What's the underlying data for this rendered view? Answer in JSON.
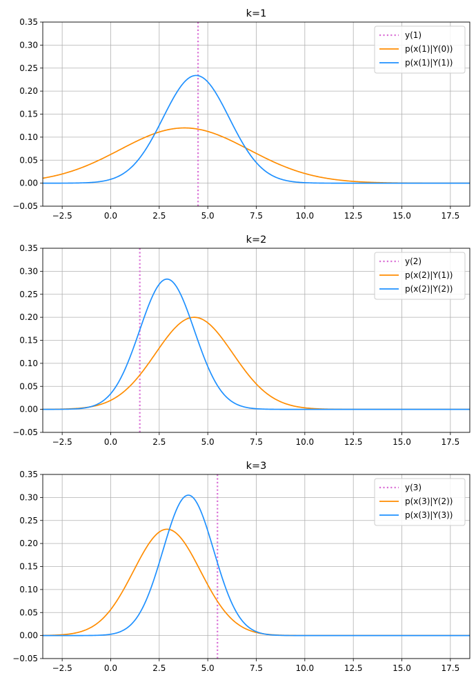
{
  "chart_data": [
    {
      "type": "line",
      "title": "k=1",
      "xlim": [
        -3.5,
        18.5
      ],
      "ylim": [
        -0.05,
        0.35
      ],
      "xticks": [
        -2.5,
        0.0,
        2.5,
        5.0,
        7.5,
        10.0,
        12.5,
        15.0,
        17.5
      ],
      "xtick_labels": [
        "−2.5",
        "0.0",
        "2.5",
        "5.0",
        "7.5",
        "10.0",
        "12.5",
        "15.0",
        "17.5"
      ],
      "yticks": [
        -0.05,
        0.0,
        0.05,
        0.1,
        0.15,
        0.2,
        0.25,
        0.3,
        0.35
      ],
      "ytick_labels": [
        "−0.05",
        "0.00",
        "0.05",
        "0.10",
        "0.15",
        "0.20",
        "0.25",
        "0.30",
        "0.35"
      ],
      "grid": true,
      "legend_position": "top-right",
      "observation": {
        "name": "y(1)",
        "x": 4.5,
        "color": "#da70d6"
      },
      "series": [
        {
          "name": "p(x(1)|Y(0))",
          "color": "#ff8c00",
          "mean": 3.8,
          "peak": 0.12
        },
        {
          "name": "p(x(1)|Y(1))",
          "color": "#1e90ff",
          "mean": 4.4,
          "peak": 0.234
        }
      ]
    },
    {
      "type": "line",
      "title": "k=2",
      "xlim": [
        -3.5,
        18.5
      ],
      "ylim": [
        -0.05,
        0.35
      ],
      "xticks": [
        -2.5,
        0.0,
        2.5,
        5.0,
        7.5,
        10.0,
        12.5,
        15.0,
        17.5
      ],
      "xtick_labels": [
        "−2.5",
        "0.0",
        "2.5",
        "5.0",
        "7.5",
        "10.0",
        "12.5",
        "15.0",
        "17.5"
      ],
      "yticks": [
        -0.05,
        0.0,
        0.05,
        0.1,
        0.15,
        0.2,
        0.25,
        0.3,
        0.35
      ],
      "ytick_labels": [
        "−0.05",
        "0.00",
        "0.05",
        "0.10",
        "0.15",
        "0.20",
        "0.25",
        "0.30",
        "0.35"
      ],
      "grid": true,
      "legend_position": "top-right",
      "observation": {
        "name": "y(2)",
        "x": 1.5,
        "color": "#da70d6"
      },
      "series": [
        {
          "name": "p(x(2)|Y(1))",
          "color": "#ff8c00",
          "mean": 4.3,
          "peak": 0.2
        },
        {
          "name": "p(x(2)|Y(2))",
          "color": "#1e90ff",
          "mean": 2.9,
          "peak": 0.283
        }
      ]
    },
    {
      "type": "line",
      "title": "k=3",
      "xlim": [
        -3.5,
        18.5
      ],
      "ylim": [
        -0.05,
        0.35
      ],
      "xticks": [
        -2.5,
        0.0,
        2.5,
        5.0,
        7.5,
        10.0,
        12.5,
        15.0,
        17.5
      ],
      "xtick_labels": [
        "−2.5",
        "0.0",
        "2.5",
        "5.0",
        "7.5",
        "10.0",
        "12.5",
        "15.0",
        "17.5"
      ],
      "yticks": [
        -0.05,
        0.0,
        0.05,
        0.1,
        0.15,
        0.2,
        0.25,
        0.3,
        0.35
      ],
      "ytick_labels": [
        "−0.05",
        "0.00",
        "0.05",
        "0.10",
        "0.15",
        "0.20",
        "0.25",
        "0.30",
        "0.35"
      ],
      "grid": true,
      "legend_position": "top-right",
      "observation": {
        "name": "y(3)",
        "x": 5.5,
        "color": "#da70d6"
      },
      "series": [
        {
          "name": "p(x(3)|Y(2))",
          "color": "#ff8c00",
          "mean": 2.9,
          "peak": 0.231
        },
        {
          "name": "p(x(3)|Y(3))",
          "color": "#1e90ff",
          "mean": 4.0,
          "peak": 0.305
        }
      ]
    }
  ]
}
